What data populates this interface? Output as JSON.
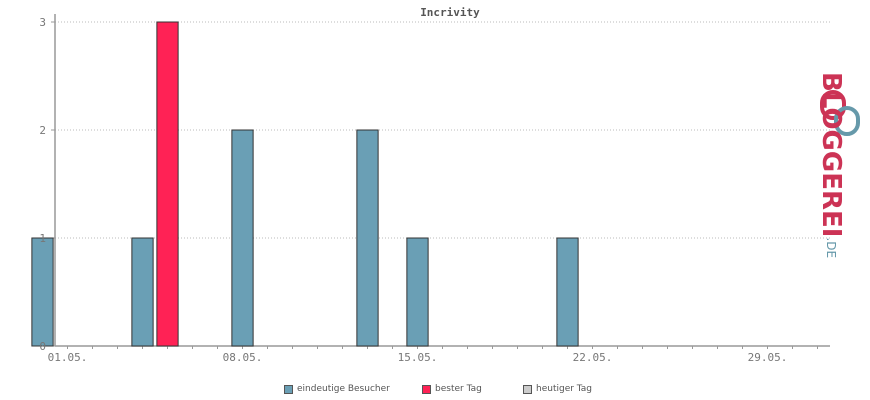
{
  "chart_data": {
    "type": "bar",
    "title": "Incrivity",
    "xlabel": "",
    "ylabel": "",
    "ylim": [
      0,
      3
    ],
    "yticks": [
      0,
      1,
      2,
      3
    ],
    "grid": true,
    "legend_position": "bottom",
    "x_tick_labels": [
      "01.05.",
      "08.05.",
      "15.05.",
      "22.05.",
      "29.05."
    ],
    "x_tick_day_index": [
      1,
      8,
      15,
      22,
      29
    ],
    "day_range": [
      0.5,
      31.5
    ],
    "categories": [
      "30.04.",
      "04.05.",
      "05.05.",
      "08.05.",
      "13.05.",
      "15.05.",
      "21.05."
    ],
    "category_day_index": [
      0,
      4,
      5,
      8,
      13,
      15,
      21
    ],
    "series": [
      {
        "name": "eindeutige Besucher",
        "color": "#6a9fb5",
        "values": [
          1,
          1,
          null,
          2,
          2,
          1,
          1
        ]
      },
      {
        "name": "bester Tag",
        "color": "#ff2255",
        "values": [
          null,
          null,
          3,
          null,
          null,
          null,
          null
        ]
      },
      {
        "name": "heutiger Tag",
        "color": "#cccccc",
        "values": [
          null,
          null,
          null,
          null,
          null,
          null,
          null
        ]
      }
    ]
  },
  "brand": {
    "name": "BLOGGEREI",
    "tld": ".DE",
    "logo_color": "#cc3355",
    "logo_accent": "#6699aa"
  }
}
